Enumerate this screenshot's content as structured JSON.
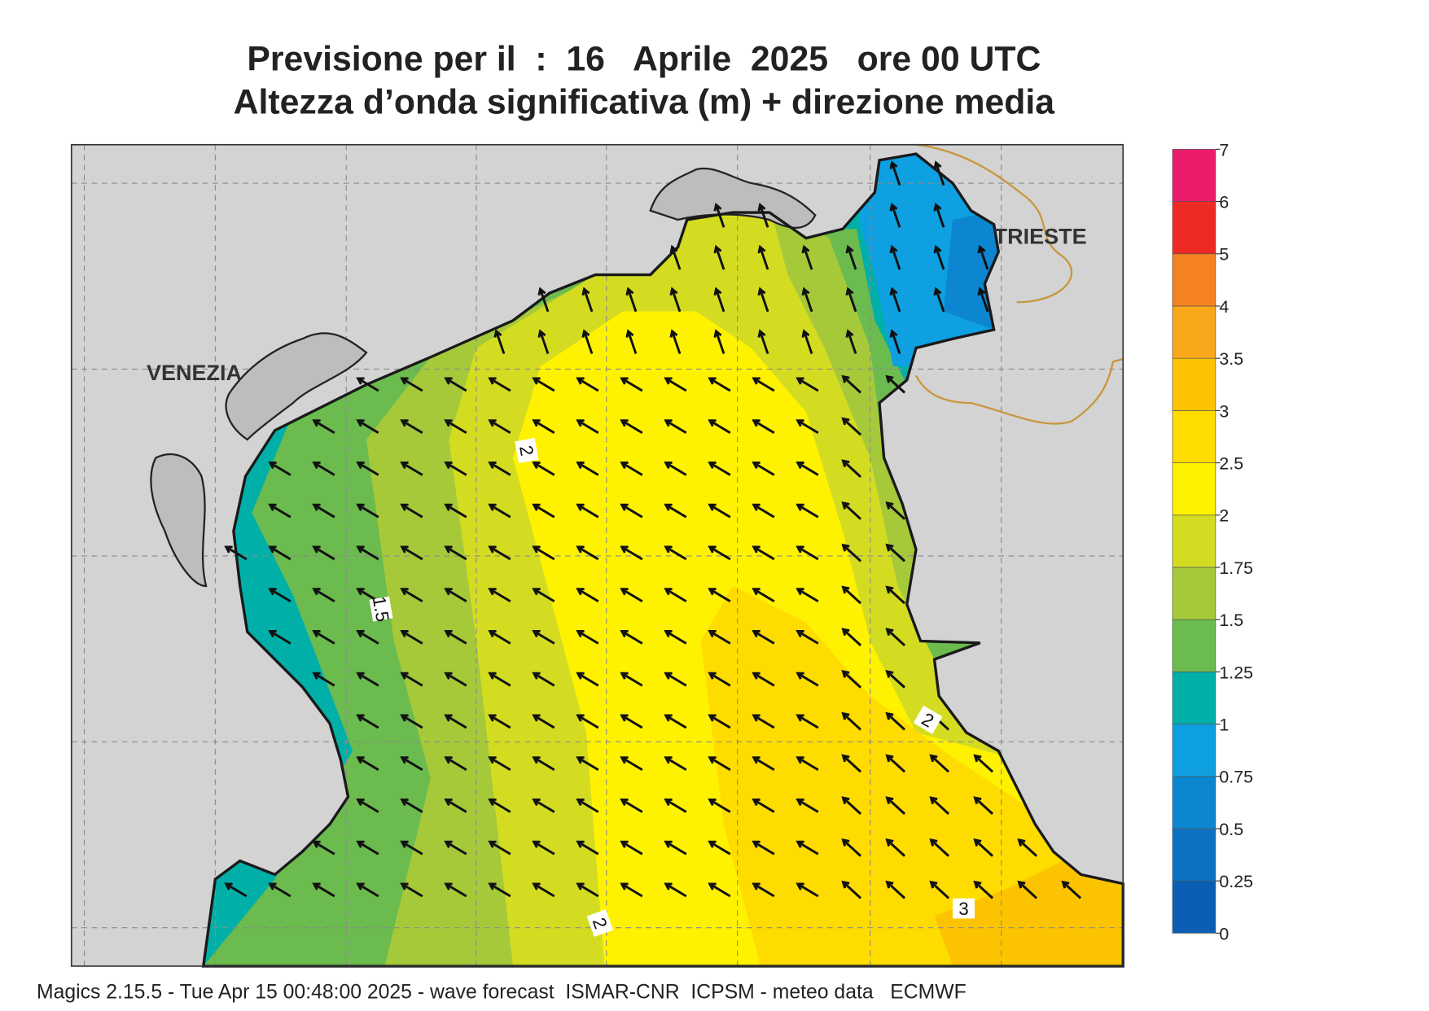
{
  "header": {
    "title_line1": "Previsione per il  :  16   Aprile  2025   ore 00 UTC",
    "title_line2": "Altezza d’onda significativa (m) + direzione media"
  },
  "map": {
    "places": [
      "VENEZIA",
      "TRIESTE"
    ],
    "contour_labels": [
      2,
      1.5,
      2,
      2,
      3
    ]
  },
  "colorbar": {
    "levels": [
      0,
      0.25,
      0.5,
      0.75,
      1,
      1.25,
      1.5,
      1.75,
      2,
      2.5,
      3,
      3.5,
      4,
      5,
      6,
      7
    ],
    "colors": [
      "#0a5fb4",
      "#0b72c3",
      "#0c86d0",
      "#0ea0e0",
      "#00b0a8",
      "#6cbb4e",
      "#a6c93a",
      "#d4dc22",
      "#fff200",
      "#ffdc00",
      "#fcc400",
      "#f9a81c",
      "#f58220",
      "#ee2a24",
      "#ec1c6c"
    ]
  },
  "footer": "Magics 2.15.5 - Tue Apr 15 00:48:00 2025 - wave forecast  ISMAR-CNR  ICPSM - meteo data   ECMWF"
}
